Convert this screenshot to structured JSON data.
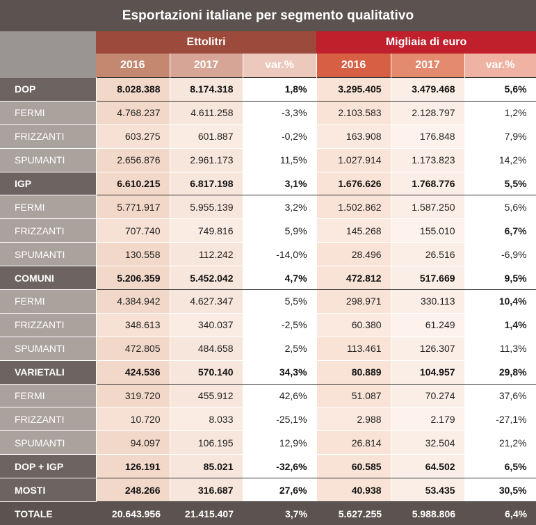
{
  "title": "Esportazioni italiane per segmento qualitativo",
  "groups": {
    "volume": "Ettolitri",
    "value": "Migliaia di euro"
  },
  "columns": [
    "2016",
    "2017",
    "var.%",
    "2016",
    "2017",
    "var.%"
  ],
  "rows": [
    {
      "label": "DOP",
      "type": "main",
      "values": [
        "8.028.388",
        "8.174.318",
        "1,8%",
        "3.295.405",
        "3.479.468",
        "5,6%"
      ]
    },
    {
      "label": "FERMI",
      "type": "sub",
      "values": [
        "4.768.237",
        "4.611.258",
        "-3,3%",
        "2.103.583",
        "2.128.797",
        "1,2%"
      ]
    },
    {
      "label": "FRIZZANTI",
      "type": "sub",
      "values": [
        "603.275",
        "601.887",
        "-0,2%",
        "163.908",
        "176.848",
        "7,9%"
      ]
    },
    {
      "label": "SPUMANTI",
      "type": "sub",
      "values": [
        "2.656.876",
        "2.961.173",
        "11,5%",
        "1.027.914",
        "1.173.823",
        "14,2%"
      ]
    },
    {
      "label": "IGP",
      "type": "main",
      "values": [
        "6.610.215",
        "6.817.198",
        "3,1%",
        "1.676.626",
        "1.768.776",
        "5,5%"
      ]
    },
    {
      "label": "FERMI",
      "type": "sub",
      "values": [
        "5.771.917",
        "5.955.139",
        "3,2%",
        "1.502.862",
        "1.587.250",
        "5,6%"
      ]
    },
    {
      "label": "FRIZZANTI",
      "type": "sub",
      "values": [
        "707.740",
        "749.816",
        "5,9%",
        "145.268",
        "155.010",
        "6,7%"
      ],
      "boldLast": true
    },
    {
      "label": "SPUMANTI",
      "type": "sub",
      "values": [
        "130.558",
        "112.242",
        "-14,0%",
        "28.496",
        "26.516",
        "-6,9%"
      ]
    },
    {
      "label": "COMUNI",
      "type": "main",
      "values": [
        "5.206.359",
        "5.452.042",
        "4,7%",
        "472.812",
        "517.669",
        "9,5%"
      ]
    },
    {
      "label": "FERMI",
      "type": "sub",
      "values": [
        "4.384.942",
        "4.627.347",
        "5,5%",
        "298.971",
        "330.113",
        "10,4%"
      ],
      "boldLast": true
    },
    {
      "label": "FRIZZANTI",
      "type": "sub",
      "values": [
        "348.613",
        "340.037",
        "-2,5%",
        "60.380",
        "61.249",
        "1,4%"
      ],
      "boldLast": true
    },
    {
      "label": "SPUMANTI",
      "type": "sub",
      "values": [
        "472.805",
        "484.658",
        "2,5%",
        "113.461",
        "126.307",
        "11,3%"
      ]
    },
    {
      "label": "VARIETALI",
      "type": "main",
      "values": [
        "424.536",
        "570.140",
        "34,3%",
        "80.889",
        "104.957",
        "29,8%"
      ]
    },
    {
      "label": "FERMI",
      "type": "sub",
      "values": [
        "319.720",
        "455.912",
        "42,6%",
        "51.087",
        "70.274",
        "37,6%"
      ]
    },
    {
      "label": "FRIZZANTI",
      "type": "sub",
      "values": [
        "10.720",
        "8.033",
        "-25,1%",
        "2.988",
        "2.179",
        "-27,1%"
      ]
    },
    {
      "label": "SPUMANTI",
      "type": "sub",
      "values": [
        "94.097",
        "106.195",
        "12,9%",
        "26.814",
        "32.504",
        "21,2%"
      ]
    },
    {
      "label": "DOP + IGP",
      "type": "main",
      "values": [
        "126.191",
        "85.021",
        "-32,6%",
        "60.585",
        "64.502",
        "6,5%"
      ]
    },
    {
      "label": "MOSTI",
      "type": "main",
      "values": [
        "248.266",
        "316.687",
        "27,6%",
        "40.938",
        "53.435",
        "30,5%"
      ]
    },
    {
      "label": "TOTALE",
      "type": "total",
      "values": [
        "20.643.956",
        "21.415.407",
        "3,7%",
        "5.627.255",
        "5.988.806",
        "6,4%"
      ]
    }
  ]
}
